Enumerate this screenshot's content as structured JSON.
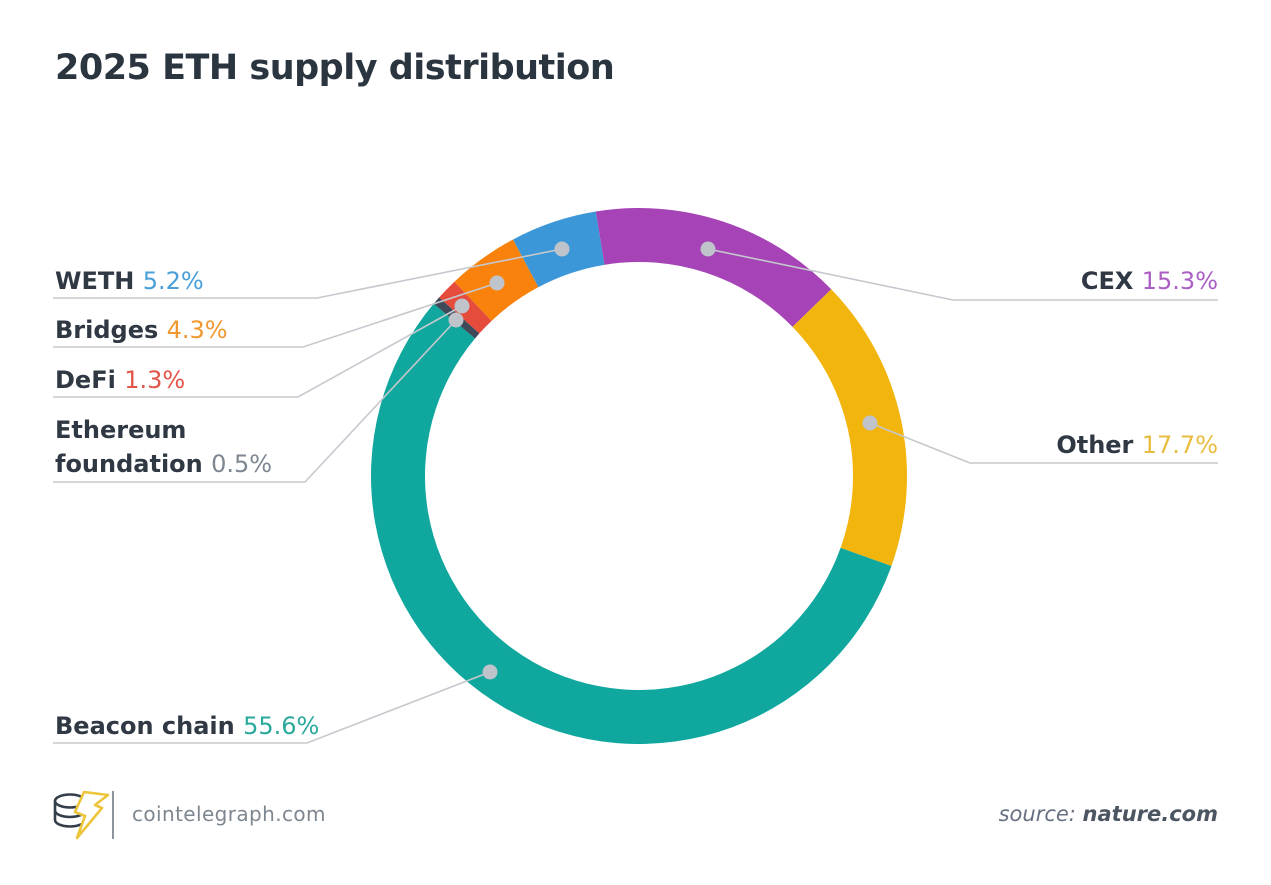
{
  "title": "2025 ETH supply distribution",
  "chart_data": {
    "type": "pie",
    "subtype": "donut",
    "title": "2025 ETH supply distribution",
    "start_angle_from_top_deg": -9.3,
    "direction": "clockwise",
    "inner_radius_ratio": 0.8,
    "legend_position": "callout-labels",
    "segments": [
      {
        "label": "CEX",
        "value": 15.3,
        "display": "15.3%",
        "color": "#a643b6",
        "pct_color": "#ab5ec4"
      },
      {
        "label": "Other",
        "value": 17.7,
        "display": "17.7%",
        "color": "#f2b50d",
        "pct_color": "#e9bc3f"
      },
      {
        "label": "Beacon chain",
        "value": 55.6,
        "display": "55.6%",
        "color": "#10a79e",
        "pct_color": "#2aa89c"
      },
      {
        "label": "Ethereum foundation",
        "value": 0.5,
        "display": "0.5%",
        "color": "#3e4a5a",
        "pct_color": "#7d8691"
      },
      {
        "label": "DeFi",
        "value": 1.3,
        "display": "1.3%",
        "color": "#e64c3c",
        "pct_color": "#e25548"
      },
      {
        "label": "Bridges",
        "value": 4.3,
        "display": "4.3%",
        "color": "#f8820c",
        "pct_color": "#f0982f"
      },
      {
        "label": "WETH",
        "value": 5.2,
        "display": "5.2%",
        "color": "#3b97d8",
        "pct_color": "#4a9fd8"
      }
    ]
  },
  "footer": {
    "brand": "cointelegraph.com",
    "logo": "cointelegraph-coins-lightning-logo",
    "source_prefix": "source: ",
    "source_name": "nature.com"
  },
  "colors": {
    "title_text": "#2b3540",
    "label_text": "#2f3843",
    "leader_line": "#c5c9ce",
    "leader_dot": "#bfc4cb",
    "background": "#ffffff"
  }
}
